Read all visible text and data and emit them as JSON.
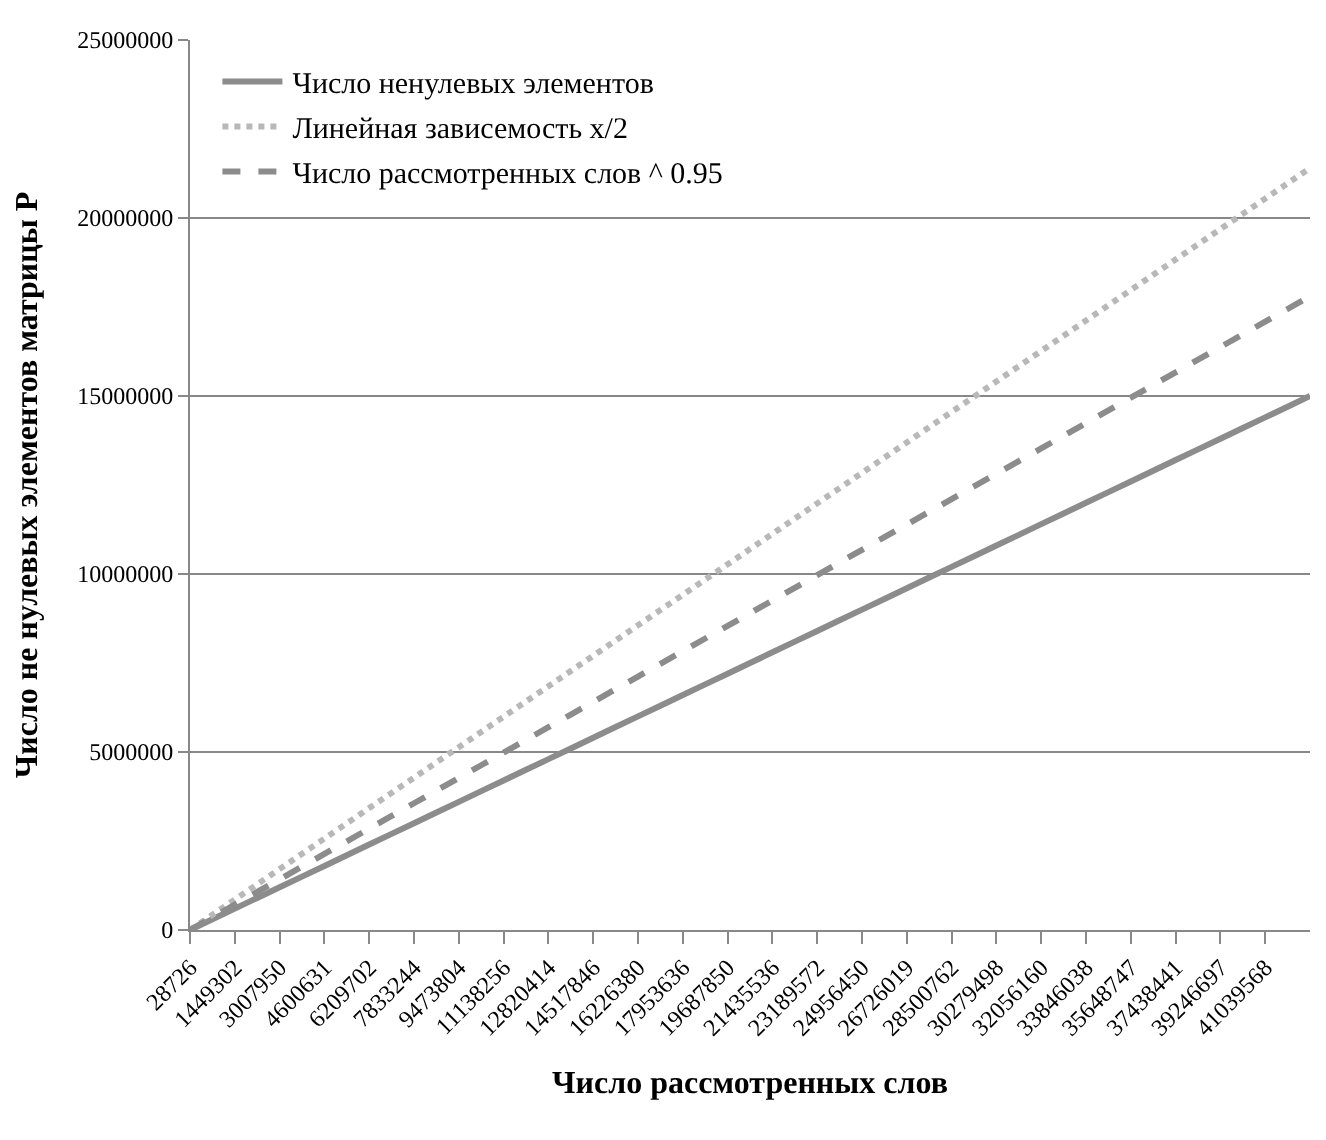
{
  "chart_data": {
    "type": "line",
    "xlabel": "Число рассмотренных слов",
    "ylabel": "Число не нулевых элементов матрицы P",
    "categories": [
      "28726",
      null,
      "1449302",
      null,
      "3007950",
      null,
      "4600631",
      null,
      "6209702",
      null,
      "7833244",
      null,
      "9473804",
      null,
      "11138256",
      null,
      "12820414",
      null,
      "14517846",
      null,
      "16226380",
      null,
      "17953636",
      null,
      "19687850",
      null,
      "21435536",
      null,
      "23189572",
      null,
      "24956450",
      null,
      "26726019",
      null,
      "28500762",
      null,
      "30279498",
      null,
      "32056160",
      null,
      "33846038",
      null,
      "35648747",
      null,
      "37438441",
      null,
      "39246697",
      null,
      "41039568",
      null,
      null
    ],
    "series": [
      {
        "name": "Число ненулевых элементов",
        "color": "#8c8c8c",
        "line_style": "solid",
        "values": [
          0,
          300000,
          600000,
          900000,
          1200000,
          1500000,
          1800000,
          2100000,
          2400000,
          2700000,
          3000000,
          3300000,
          3600000,
          3900000,
          4200000,
          4500000,
          4800000,
          5100000,
          5400000,
          5700000,
          6000000,
          6300000,
          6600000,
          6900000,
          7200000,
          7500000,
          7800000,
          8100000,
          8400000,
          8700000,
          9000000,
          9300000,
          9600000,
          9900000,
          10200000,
          10500000,
          10800000,
          11100000,
          11400000,
          11700000,
          12000000,
          12300000,
          12600000,
          12900000,
          13200000,
          13500000,
          13800000,
          14100000,
          14400000,
          14700000,
          15000000
        ]
      },
      {
        "name": "Линейная зависемость x/2",
        "color": "#b8b8b8",
        "line_style": "dotted",
        "values": [
          0,
          428000,
          856000,
          1284000,
          1712000,
          2140000,
          2568000,
          2996000,
          3424000,
          3852000,
          4280000,
          4708000,
          5136000,
          5564000,
          5992000,
          6420000,
          6848000,
          7276000,
          7704000,
          8132000,
          8560000,
          8988000,
          9416000,
          9844000,
          10272000,
          10700000,
          11128000,
          11556000,
          11984000,
          12412000,
          12840000,
          13268000,
          13696000,
          14124000,
          14552000,
          14980000,
          15408000,
          15836000,
          16264000,
          16692000,
          17120000,
          17548000,
          17976000,
          18404000,
          18832000,
          19260000,
          19688000,
          20116000,
          20544000,
          20972000,
          21400000
        ]
      },
      {
        "name": "Число рассмотренных слов ^ 0.95",
        "color": "#8c8c8c",
        "line_style": "dashed",
        "values": [
          0,
          356000,
          712000,
          1068000,
          1424000,
          1780000,
          2136000,
          2492000,
          2848000,
          3204000,
          3560000,
          3916000,
          4272000,
          4628000,
          4984000,
          5340000,
          5696000,
          6052000,
          6408000,
          6764000,
          7120000,
          7476000,
          7832000,
          8188000,
          8544000,
          8900000,
          9256000,
          9612000,
          9968000,
          10324000,
          10680000,
          11036000,
          11392000,
          11748000,
          12104000,
          12460000,
          12816000,
          13172000,
          13528000,
          13884000,
          14240000,
          14596000,
          14952000,
          15308000,
          15664000,
          16020000,
          16376000,
          16732000,
          17088000,
          17444000,
          17800000
        ]
      }
    ],
    "ylim": [
      0,
      25000000
    ],
    "yticks": [
      0,
      5000000,
      10000000,
      15000000,
      20000000,
      25000000
    ],
    "grid": "y",
    "legend": "top left",
    "marker": "none"
  }
}
